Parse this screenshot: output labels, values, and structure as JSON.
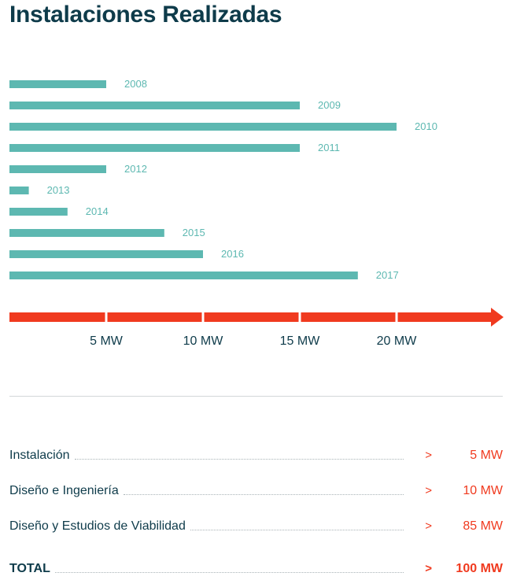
{
  "title": "Instalaciones Realizadas",
  "colors": {
    "bar": "#5db8b1",
    "axis": "#f03a1f",
    "title": "#0e3b4a",
    "value": "#f03a1f"
  },
  "chart_data": {
    "type": "bar",
    "orientation": "horizontal",
    "categories": [
      "2008",
      "2009",
      "2010",
      "2011",
      "2012",
      "2013",
      "2014",
      "2015",
      "2016",
      "2017"
    ],
    "values": [
      5,
      15,
      20,
      15,
      5,
      1,
      3,
      8,
      10,
      18
    ],
    "xlim": [
      0,
      25
    ],
    "xticks": [
      5,
      10,
      15,
      20
    ],
    "xtick_labels": [
      "5 MW",
      "10 MW",
      "15 MW",
      "20 MW"
    ],
    "grid": false,
    "legend": "none"
  },
  "summary": {
    "rows": [
      {
        "label": "Instalación",
        "arrow": ">",
        "value": "5 MW"
      },
      {
        "label": "Diseño e Ingeniería",
        "arrow": ">",
        "value": "10 MW"
      },
      {
        "label": "Diseño y Estudios de Viabilidad",
        "arrow": ">",
        "value": "85 MW"
      }
    ],
    "total": {
      "label": "TOTAL",
      "arrow": ">",
      "value": "100 MW"
    }
  }
}
